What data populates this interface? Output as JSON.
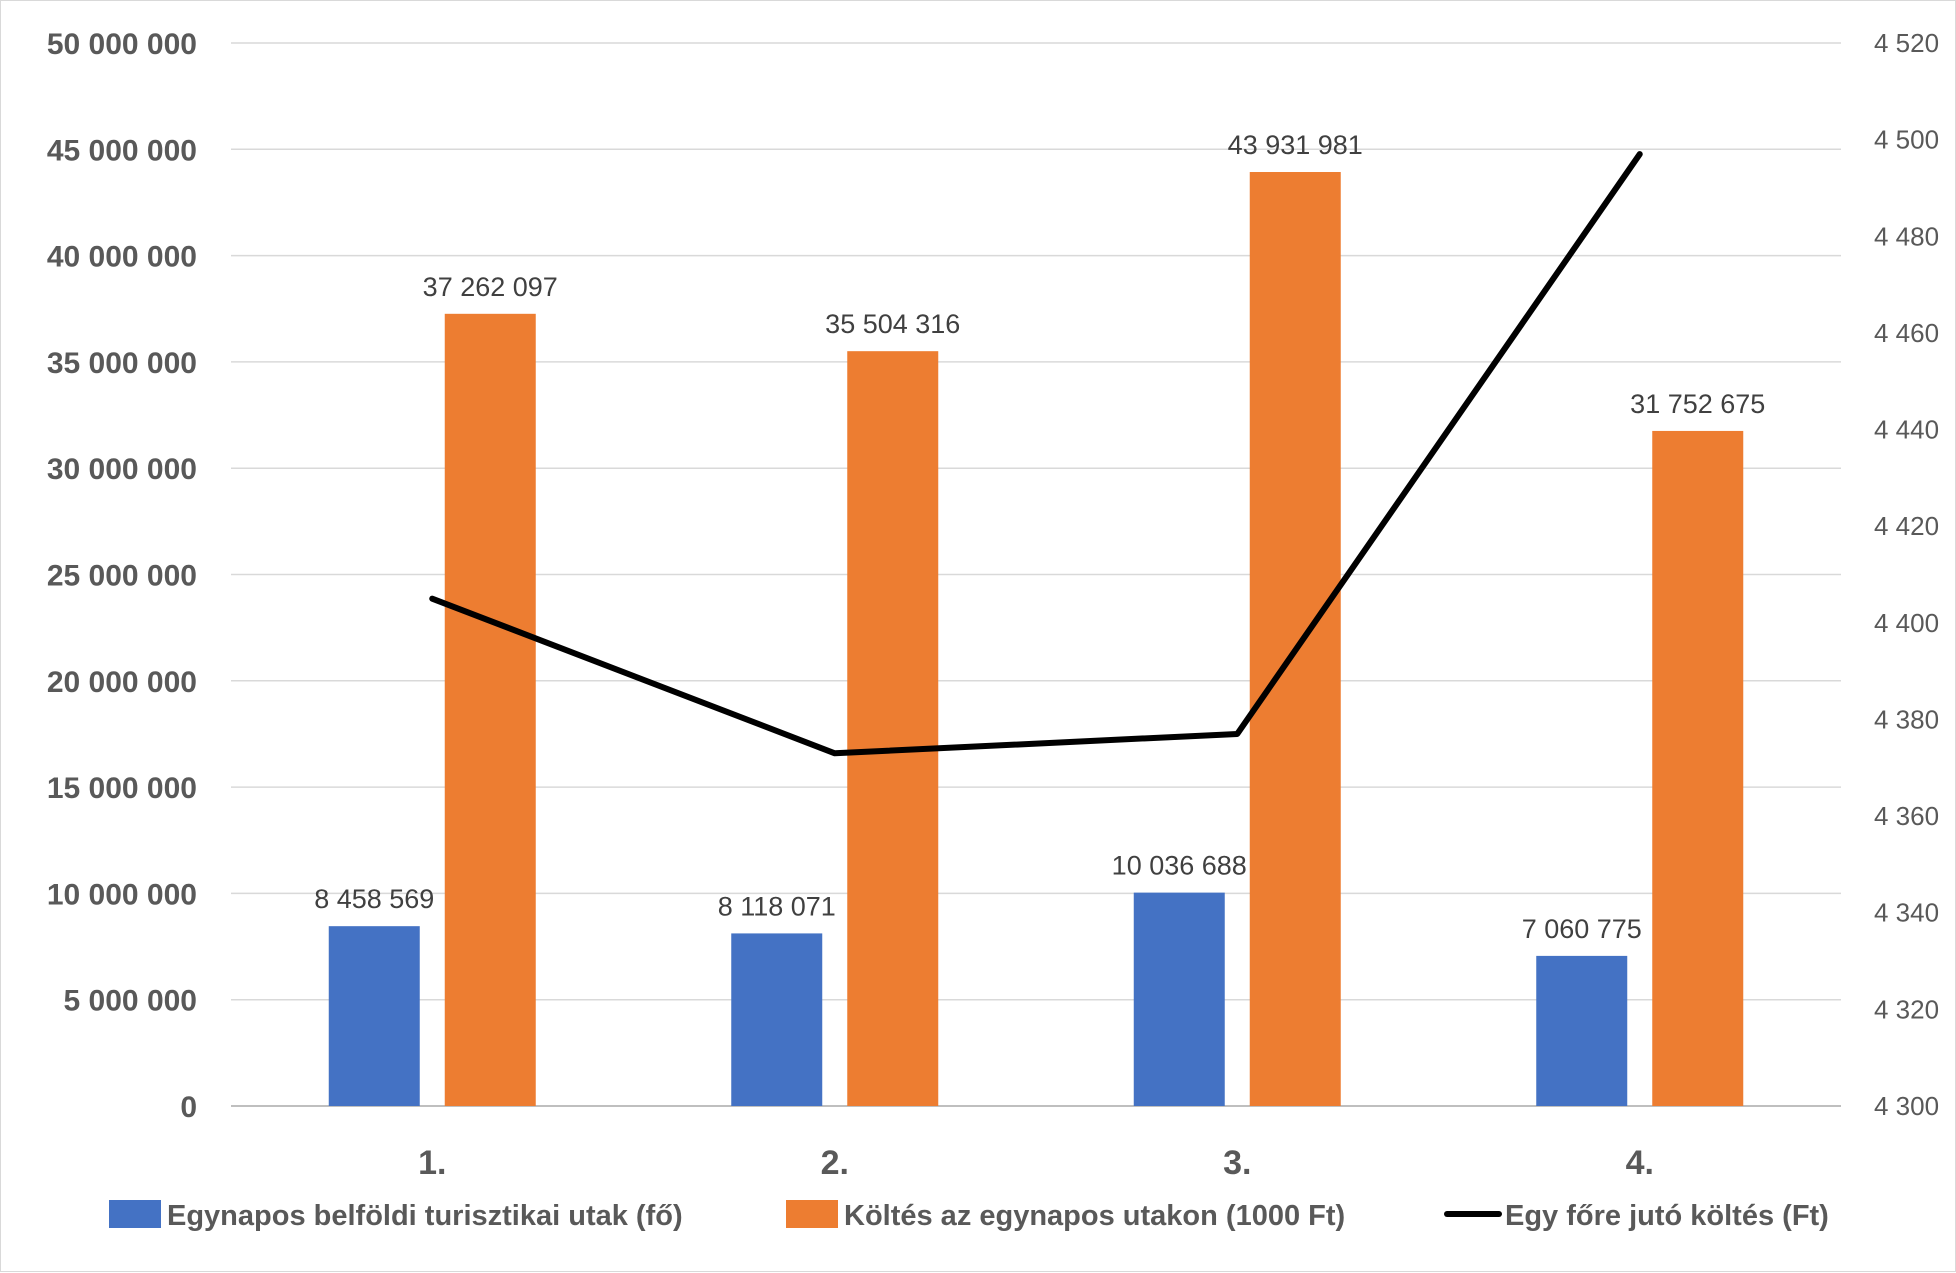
{
  "chart_data": {
    "type": "bar",
    "categories": [
      "1.",
      "2.",
      "3.",
      "4."
    ],
    "series": [
      {
        "name": "Egynapos belföldi turisztikai utak (fő)",
        "type": "bar",
        "axis": "left",
        "color": "#4472C4",
        "values": [
          8458569,
          8118071,
          10036688,
          7060775
        ],
        "labels": [
          "8 458 569",
          "8 118 071",
          "10 036 688",
          "7 060 775"
        ]
      },
      {
        "name": "Költés az egynapos utakon (1000 Ft)",
        "type": "bar",
        "axis": "left",
        "color": "#ED7D31",
        "values": [
          37262097,
          35504316,
          43931981,
          31752675
        ],
        "labels": [
          "37 262 097",
          "35 504 316",
          "43 931 981",
          "31 752 675"
        ]
      },
      {
        "name": "Egy főre jutó költés (Ft)",
        "type": "line",
        "axis": "right",
        "color": "#000000",
        "values": [
          4405,
          4373,
          4377,
          4497
        ]
      }
    ],
    "y_left": {
      "ylim": [
        0,
        50000000
      ],
      "ticks": [
        0,
        5000000,
        10000000,
        15000000,
        20000000,
        25000000,
        30000000,
        35000000,
        40000000,
        45000000,
        50000000
      ],
      "tick_labels": [
        "0",
        "5 000 000",
        "10 000 000",
        "15 000 000",
        "20 000 000",
        "25 000 000",
        "30 000 000",
        "35 000 000",
        "40 000 000",
        "45 000 000",
        "50 000 000"
      ]
    },
    "y_right": {
      "ylim": [
        4300,
        4520
      ],
      "ticks": [
        4300,
        4320,
        4340,
        4360,
        4380,
        4400,
        4420,
        4440,
        4460,
        4480,
        4500,
        4520
      ],
      "tick_labels": [
        "4 300",
        "4 320",
        "4 340",
        "4 360",
        "4 380",
        "4 400",
        "4 420",
        "4 440",
        "4 460",
        "4 480",
        "4 500",
        "4 520"
      ]
    },
    "grid": true,
    "legend": "bottom"
  }
}
